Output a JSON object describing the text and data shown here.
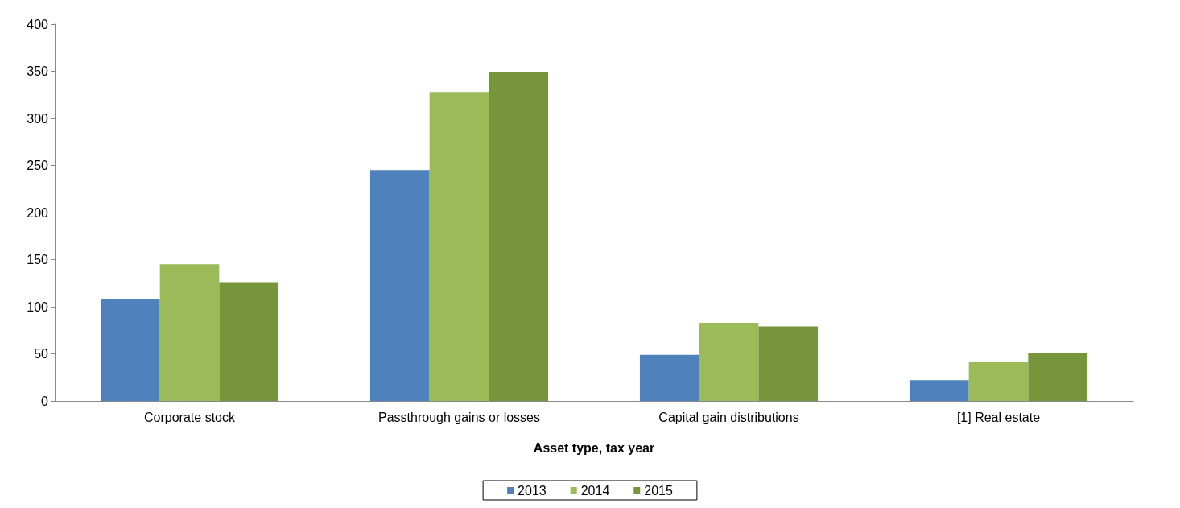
{
  "chart_data": {
    "type": "bar",
    "xlabel": "Asset type, tax year",
    "categories": [
      "Corporate stock",
      "Passthrough gains or losses",
      "Capital gain distributions",
      "[1] Real estate"
    ],
    "series": [
      {
        "name": "2013",
        "color": "#4f81bd",
        "values": [
          108,
          245,
          49,
          22
        ]
      },
      {
        "name": "2014",
        "color": "#9bbb59",
        "values": [
          145,
          328,
          83,
          41
        ]
      },
      {
        "name": "2015",
        "color": "#77963b",
        "values": [
          126,
          349,
          79,
          51
        ]
      }
    ],
    "ylim": [
      0,
      400
    ],
    "yticks": [
      0,
      50,
      100,
      150,
      200,
      250,
      300,
      350,
      400
    ],
    "grid": false,
    "legend": "bottom"
  }
}
